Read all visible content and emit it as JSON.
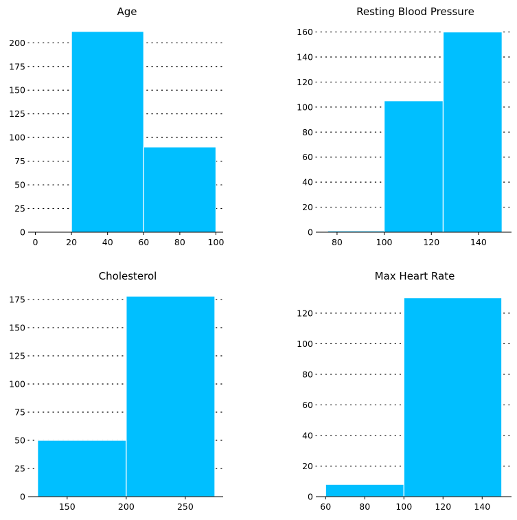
{
  "colors": {
    "bar": "#00bfff",
    "bar_edge": "#ffffff",
    "grid": "#000000",
    "axis": "#000000"
  },
  "chart_data": [
    {
      "type": "bar",
      "title": "Age",
      "bins": [
        [
          20,
          60
        ],
        [
          60,
          100
        ]
      ],
      "values": [
        212,
        90
      ],
      "xlim": [
        -4,
        104
      ],
      "ylim": [
        0,
        222
      ],
      "xticks": [
        0,
        20,
        40,
        60,
        80,
        100
      ],
      "yticks": [
        0,
        25,
        50,
        75,
        100,
        125,
        150,
        175,
        200
      ],
      "grid": "horizontal dotted"
    },
    {
      "type": "bar",
      "title": "Resting Blood Pressure",
      "bins": [
        [
          76,
          100
        ],
        [
          100,
          125
        ],
        [
          125,
          150
        ]
      ],
      "values": [
        1,
        105,
        160
      ],
      "xlim": [
        71,
        154
      ],
      "ylim": [
        0,
        168
      ],
      "xticks": [
        80,
        100,
        120,
        140
      ],
      "yticks": [
        0,
        20,
        40,
        60,
        80,
        100,
        120,
        140,
        160
      ],
      "grid": "horizontal dotted"
    },
    {
      "type": "bar",
      "title": "Cholesterol",
      "bins": [
        [
          125,
          200
        ],
        [
          200,
          275
        ]
      ],
      "values": [
        50,
        178
      ],
      "xlim": [
        117,
        282
      ],
      "ylim": [
        0,
        186
      ],
      "xticks": [
        150,
        200,
        250
      ],
      "yticks": [
        0,
        25,
        50,
        75,
        100,
        125,
        150,
        175
      ],
      "grid": "horizontal dotted"
    },
    {
      "type": "bar",
      "title": "Max Heart Rate",
      "bins": [
        [
          60,
          100
        ],
        [
          100,
          150
        ]
      ],
      "values": [
        8,
        130
      ],
      "xlim": [
        55,
        155
      ],
      "ylim": [
        0,
        137
      ],
      "xticks": [
        60,
        80,
        100,
        120,
        140
      ],
      "yticks": [
        0,
        20,
        40,
        60,
        80,
        100,
        120
      ],
      "grid": "horizontal dotted"
    }
  ]
}
